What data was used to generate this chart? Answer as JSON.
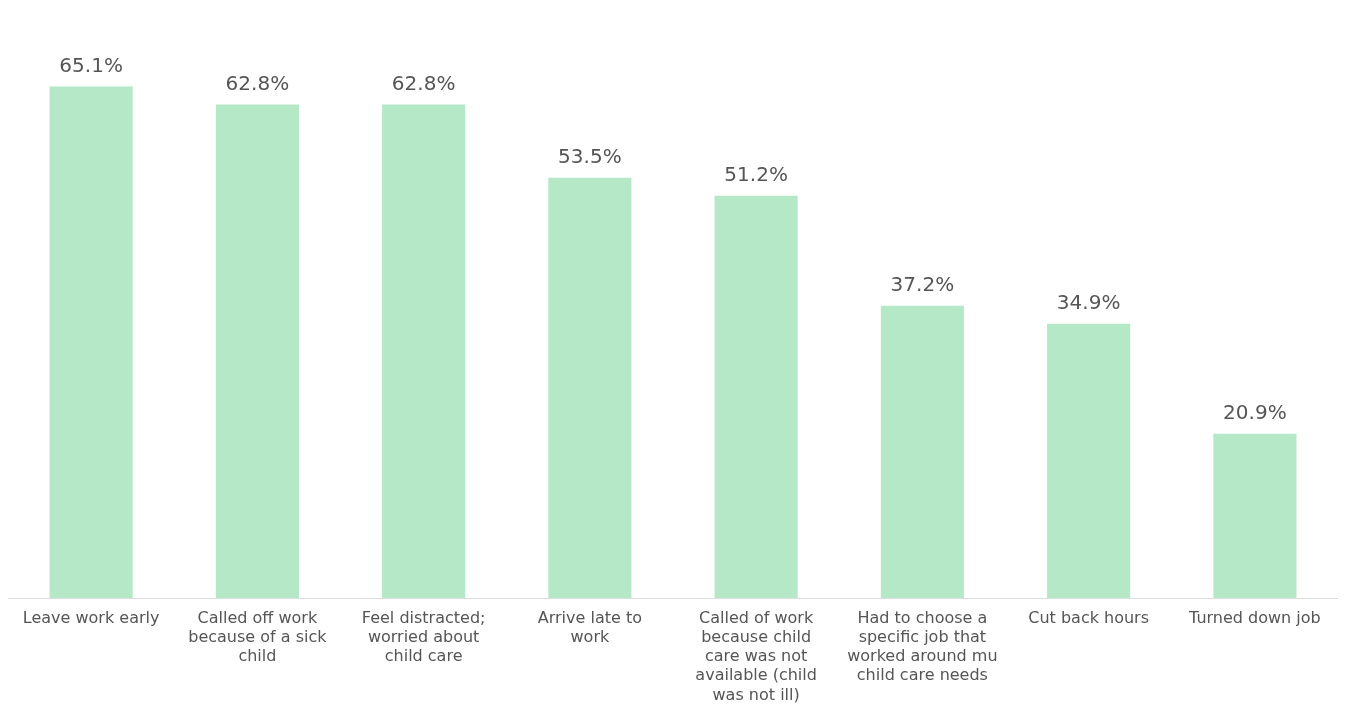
{
  "chart_data": {
    "type": "bar",
    "categories": [
      "Leave work early",
      "Called off work because of a sick child",
      "Feel distracted; worried about child care",
      "Arrive late to work",
      "Called of work because child care was not available (child was not ill)",
      "Had to choose a specific job that worked around mu child care needs",
      "Cut back hours",
      "Turned down job"
    ],
    "values": [
      65.1,
      62.8,
      62.8,
      53.5,
      51.2,
      37.2,
      34.9,
      20.9
    ],
    "value_labels": [
      "65.1%",
      "62.8%",
      "62.8%",
      "53.5%",
      "51.2%",
      "37.2%",
      "34.9%",
      "20.9%"
    ],
    "color": "#b4e8c6",
    "grid": false,
    "legend": false
  }
}
